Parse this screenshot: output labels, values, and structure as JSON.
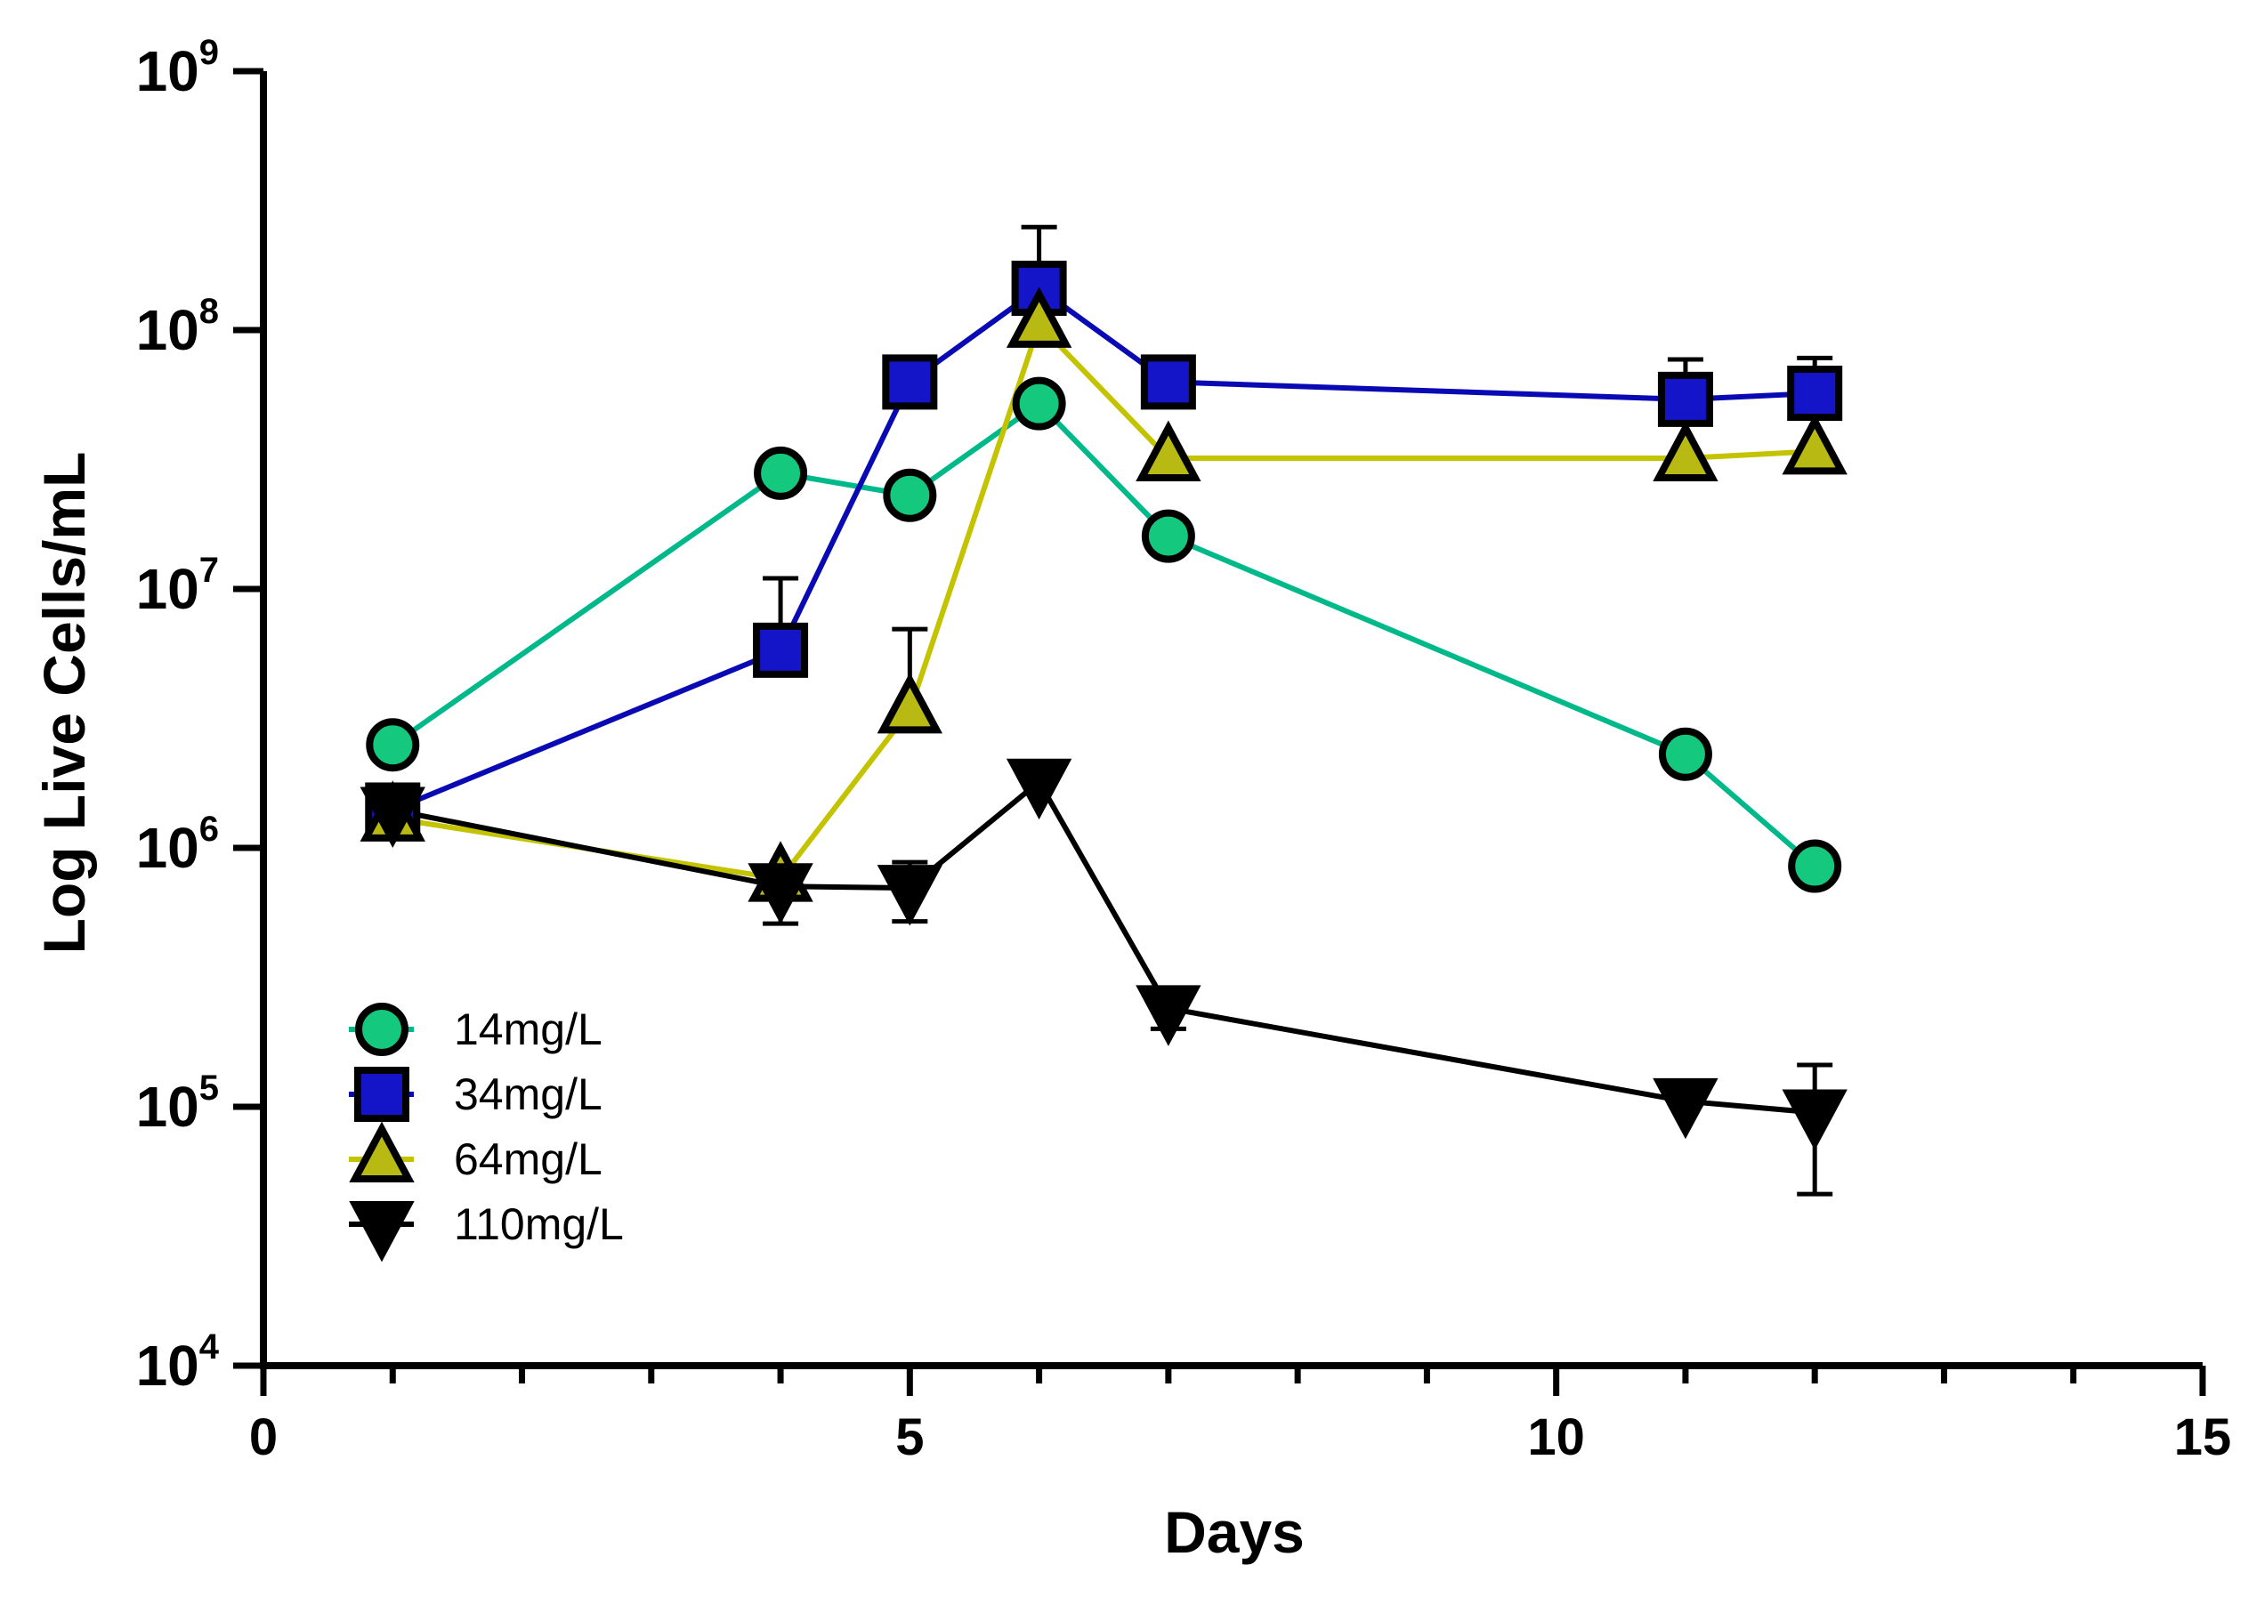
{
  "chart_data": {
    "type": "line",
    "title": "",
    "xlabel": "Days",
    "ylabel": "Log Live Cells/mL",
    "xlim": [
      0,
      15
    ],
    "x_ticks": [
      "0",
      "5",
      "10",
      "15"
    ],
    "y_scale": "log",
    "ylim": [
      10000,
      1000000000
    ],
    "y_ticks": [
      {
        "base": "10",
        "exp": "4",
        "value": 10000
      },
      {
        "base": "10",
        "exp": "5",
        "value": 100000
      },
      {
        "base": "10",
        "exp": "6",
        "value": 1000000
      },
      {
        "base": "10",
        "exp": "7",
        "value": 10000000
      },
      {
        "base": "10",
        "exp": "8",
        "value": 100000000
      },
      {
        "base": "10",
        "exp": "9",
        "value": 1000000000
      }
    ],
    "grid": false,
    "legend_position": "bottom-left",
    "series": [
      {
        "name": "14mg/L",
        "color": "#00b98a",
        "marker": "circle",
        "marker_fill": "#14c87d",
        "x": [
          1,
          4,
          5,
          6,
          7,
          11,
          12
        ],
        "y": [
          2500000,
          28000000,
          23000000,
          52000000,
          16000000,
          2300000,
          850000
        ],
        "err_up": [
          null,
          null,
          null,
          null,
          null,
          null,
          null
        ]
      },
      {
        "name": "34mg/L",
        "color": "#0a0ab4",
        "marker": "square",
        "marker_fill": "#1414c8",
        "x": [
          1,
          4,
          5,
          6,
          7,
          11,
          12
        ],
        "y": [
          1400000,
          5800000,
          63000000,
          145000000,
          63000000,
          54000000,
          57000000
        ],
        "err_up": [
          null,
          11000000,
          null,
          250000000,
          null,
          77000000,
          78000000
        ]
      },
      {
        "name": "64mg/L",
        "color": "#c3c300",
        "marker": "triangle-up",
        "marker_fill": "#b9b914",
        "x": [
          1,
          4,
          5,
          6,
          7,
          11,
          12
        ],
        "y": [
          1300000,
          760000,
          3400000,
          105000000,
          32000000,
          32000000,
          34000000
        ],
        "err_up": [
          null,
          null,
          7000000,
          null,
          null,
          null,
          null
        ]
      },
      {
        "name": "110mg/L",
        "color": "#000000",
        "marker": "triangle-down",
        "marker_fill": "#000000",
        "x": [
          1,
          4,
          5,
          6,
          7,
          11,
          12
        ],
        "y": [
          1400000,
          710000,
          700000,
          1800000,
          240000,
          105000,
          95000
        ],
        "err_up": [
          null,
          null,
          880000,
          null,
          null,
          null,
          145000
        ],
        "err_down": [
          null,
          510000,
          520000,
          null,
          200000,
          null,
          46000
        ]
      }
    ]
  }
}
